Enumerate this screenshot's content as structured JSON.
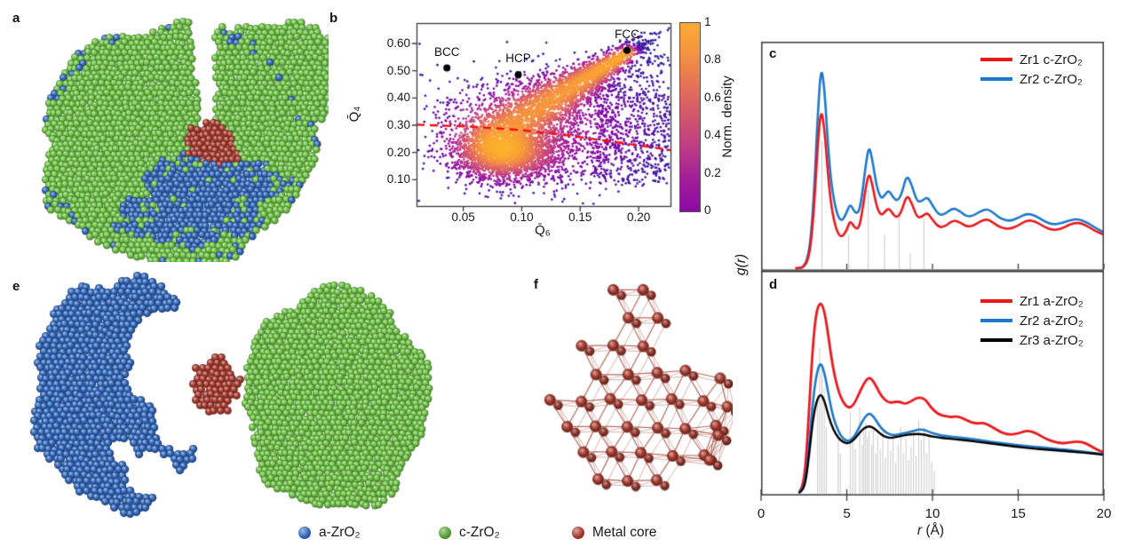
{
  "figure": {
    "panels": {
      "a": {
        "label": "a",
        "type": "particle-render",
        "description": "cut-away core-shell nanoparticle",
        "colors": {
          "shell_green": "#6cc043",
          "inner_blue": "#2e64b8",
          "core_red": "#a5382c"
        }
      },
      "b": {
        "label": "b"
      },
      "c": {
        "label": "c"
      },
      "d": {
        "label": "d"
      },
      "e": {
        "label": "e",
        "type": "particle-render",
        "description": "separated phases",
        "colors": {
          "a_zro2": "#2e64b8",
          "c_zro2": "#6cc043",
          "metal": "#a5382c"
        }
      },
      "f": {
        "label": "f",
        "type": "lattice-render",
        "description": "metal core lattice",
        "color": "#a5382c",
        "bond_color": "#9c3a2e"
      }
    },
    "bottom_legend": [
      {
        "label": "a-ZrO₂",
        "color": "#2e64b8"
      },
      {
        "label": "c-ZrO₂",
        "color": "#55a038"
      },
      {
        "label": "Metal core",
        "color": "#a5382c"
      }
    ]
  },
  "chart_data": [
    {
      "type": "scatter",
      "panel": "b",
      "xlabel": "Q̄₆",
      "ylabel": "Q̄₄",
      "xlim": [
        0.01,
        0.228
      ],
      "ylim": [
        0,
        0.675
      ],
      "xticks": [
        0.05,
        0.1,
        0.15,
        0.2
      ],
      "xtick_labels": [
        "0.05",
        "0.10",
        "0.15",
        "0.20"
      ],
      "yticks": [
        0.1,
        0.2,
        0.3,
        0.4,
        0.5,
        0.6
      ],
      "ytick_labels": [
        "0.10",
        "0.20",
        "0.30",
        "0.40",
        "0.50",
        "0.60"
      ],
      "grid": false,
      "colorbar": {
        "label": "Norm. density",
        "tick_labels": [
          "1",
          "0.8",
          "0.6",
          "0.4",
          "0.2",
          "0"
        ],
        "stops": [
          "#8b0aa5",
          "#a11d9a",
          "#bc3b85",
          "#d2556e",
          "#e57258",
          "#f39242",
          "#fcab33"
        ]
      },
      "point_colormap": [
        "#2e1e9c",
        "#4b14a5",
        "#7a07a6",
        "#9c169c",
        "#b93289",
        "#d04f74",
        "#e36b5d",
        "#f18a45",
        "#fba236",
        "#fcb42c"
      ],
      "annotations": [
        {
          "label": "BCC",
          "x": 0.036,
          "y": 0.51
        },
        {
          "label": "HCP",
          "x": 0.097,
          "y": 0.485
        },
        {
          "label": "FCC",
          "x": 0.19,
          "y": 0.575
        }
      ],
      "dashed_line": {
        "color": "#f40e0c",
        "points": [
          [
            0.01,
            0.302
          ],
          [
            0.06,
            0.294
          ],
          [
            0.1,
            0.282
          ],
          [
            0.14,
            0.262
          ],
          [
            0.18,
            0.238
          ],
          [
            0.21,
            0.22
          ],
          [
            0.228,
            0.208
          ]
        ]
      },
      "density_model": {
        "seed": 42,
        "clusters": [
          {
            "kind": "gauss",
            "n": 2400,
            "cu": 0.344,
            "cv": 0.296,
            "su": 0.096,
            "sv": 0.074,
            "w": 1.0
          },
          {
            "kind": "streak",
            "n": 2500,
            "u0": 0.312,
            "v0": 0.4,
            "u1": 0.826,
            "v1": 0.837,
            "s0": 0.085,
            "s1": 0.02,
            "jitter": 0.1,
            "w": 1.35
          },
          {
            "kind": "gauss",
            "n": 1500,
            "cu": 0.482,
            "cv": 0.415,
            "su": 0.22,
            "sv": 0.156,
            "w": 0.2
          },
          {
            "kind": "uniform",
            "n": 650,
            "u0": 0.7,
            "u1": 0.995,
            "v0": 0.12,
            "v1": 0.83,
            "w": 0.0
          }
        ]
      }
    },
    {
      "type": "line",
      "panel": "c",
      "ylabel": "g(r)",
      "xlim": [
        0,
        20
      ],
      "xticks": [
        5,
        10,
        15,
        20
      ],
      "stick_color": "#c9c9c9",
      "sticks": [
        [
          3.55,
          0.57
        ],
        [
          5.1,
          0.15
        ],
        [
          6.25,
          0.35
        ],
        [
          7.2,
          0.15
        ],
        [
          8.05,
          0.23
        ],
        [
          8.7,
          0.065
        ],
        [
          9.5,
          0.22
        ]
      ],
      "legend": [
        {
          "label": "Zr1 c-ZrO₂",
          "color": "#e8191d"
        },
        {
          "label": "Zr2 c-ZrO₂",
          "color": "#1f78c8"
        }
      ],
      "x": [
        2.0,
        2.3,
        2.5,
        2.7,
        2.9,
        3.1,
        3.3,
        3.5,
        3.7,
        3.9,
        4.1,
        4.4,
        4.7,
        5.0,
        5.2,
        5.45,
        5.7,
        5.9,
        6.1,
        6.3,
        6.5,
        6.75,
        7.0,
        7.2,
        7.45,
        7.7,
        7.95,
        8.2,
        8.5,
        8.8,
        9.1,
        9.4,
        9.7,
        10.0,
        10.4,
        10.8,
        11.2,
        11.6,
        12.0,
        12.4,
        12.8,
        13.2,
        13.6,
        14.0,
        14.5,
        15.0,
        15.5,
        16.0,
        16.5,
        17.0,
        17.5,
        18.0,
        18.5,
        19.0,
        19.5,
        20.0
      ],
      "series": [
        {
          "name": "Zr2 c-ZrO₂",
          "color": "#1f78c8",
          "width": 2.6,
          "y": [
            0,
            0,
            0.01,
            0.04,
            0.13,
            0.35,
            0.68,
            0.91,
            0.8,
            0.55,
            0.37,
            0.245,
            0.205,
            0.25,
            0.29,
            0.25,
            0.245,
            0.33,
            0.46,
            0.55,
            0.48,
            0.36,
            0.31,
            0.325,
            0.35,
            0.315,
            0.3,
            0.33,
            0.42,
            0.37,
            0.295,
            0.3,
            0.32,
            0.28,
            0.235,
            0.245,
            0.27,
            0.255,
            0.23,
            0.235,
            0.255,
            0.265,
            0.245,
            0.22,
            0.21,
            0.225,
            0.245,
            0.235,
            0.21,
            0.195,
            0.2,
            0.215,
            0.22,
            0.205,
            0.18,
            0.16
          ]
        },
        {
          "name": "Zr1 c-ZrO₂",
          "color": "#e8191d",
          "width": 2.6,
          "y": [
            0,
            0,
            0.008,
            0.03,
            0.1,
            0.28,
            0.55,
            0.72,
            0.62,
            0.42,
            0.27,
            0.165,
            0.135,
            0.17,
            0.215,
            0.18,
            0.175,
            0.25,
            0.36,
            0.43,
            0.37,
            0.27,
            0.235,
            0.25,
            0.27,
            0.24,
            0.225,
            0.255,
            0.33,
            0.29,
            0.225,
            0.23,
            0.25,
            0.215,
            0.18,
            0.19,
            0.215,
            0.205,
            0.185,
            0.19,
            0.21,
            0.22,
            0.2,
            0.18,
            0.175,
            0.19,
            0.215,
            0.21,
            0.185,
            0.17,
            0.175,
            0.195,
            0.205,
            0.19,
            0.165,
            0.15
          ]
        }
      ]
    },
    {
      "type": "line",
      "panel": "d",
      "xlabel_var": "r",
      "xlabel_unit": " (Å)",
      "xlim": [
        0,
        20
      ],
      "xticks": [
        0,
        5,
        10,
        15,
        20
      ],
      "xtick_labels": [
        "0",
        "5",
        "10",
        "15",
        "20"
      ],
      "stick_color": "#c9c9c9",
      "sticks": [
        [
          3.3,
          0.44
        ],
        [
          3.42,
          0.66
        ],
        [
          3.55,
          0.57
        ],
        [
          3.68,
          0.48
        ],
        [
          3.8,
          0.3
        ],
        [
          4.5,
          0.27
        ],
        [
          4.62,
          0.18
        ],
        [
          5.2,
          0.37
        ],
        [
          5.35,
          0.25
        ],
        [
          5.5,
          0.2
        ],
        [
          5.75,
          0.39
        ],
        [
          5.9,
          0.22
        ],
        [
          6.0,
          0.28
        ],
        [
          6.1,
          0.32
        ],
        [
          6.2,
          0.25
        ],
        [
          6.3,
          0.28
        ],
        [
          6.45,
          0.22
        ],
        [
          6.55,
          0.3
        ],
        [
          6.7,
          0.18
        ],
        [
          6.8,
          0.26
        ],
        [
          6.95,
          0.2
        ],
        [
          7.1,
          0.28
        ],
        [
          7.25,
          0.16
        ],
        [
          7.4,
          0.24
        ],
        [
          7.55,
          0.19
        ],
        [
          7.7,
          0.27
        ],
        [
          7.85,
          0.14
        ],
        [
          8.0,
          0.22
        ],
        [
          8.15,
          0.3
        ],
        [
          8.3,
          0.18
        ],
        [
          8.45,
          0.25
        ],
        [
          8.6,
          0.15
        ],
        [
          8.75,
          0.21
        ],
        [
          8.9,
          0.28
        ],
        [
          9.05,
          0.17
        ],
        [
          9.2,
          0.33
        ],
        [
          9.35,
          0.24
        ],
        [
          9.5,
          0.3
        ],
        [
          9.65,
          0.18
        ],
        [
          9.8,
          0.26
        ],
        [
          9.95,
          0.14
        ],
        [
          10.1,
          0.1
        ]
      ],
      "legend": [
        {
          "label": "Zr1 a-ZrO₂",
          "color": "#e8191d"
        },
        {
          "label": "Zr2 a-ZrO₂",
          "color": "#1f78c8"
        },
        {
          "label": "Zr3 a-ZrO₂",
          "color": "#000000"
        }
      ],
      "x": [
        2.2,
        2.4,
        2.6,
        2.8,
        3.0,
        3.2,
        3.45,
        3.7,
        3.95,
        4.2,
        4.5,
        4.8,
        5.1,
        5.4,
        5.7,
        6.0,
        6.3,
        6.6,
        6.9,
        7.2,
        7.5,
        7.8,
        8.1,
        8.4,
        8.7,
        9.0,
        9.3,
        9.6,
        9.9,
        10.3,
        10.7,
        11.1,
        11.5,
        12.0,
        12.5,
        13.0,
        13.5,
        14.0,
        14.5,
        15.0,
        15.5,
        16.0,
        16.5,
        17.0,
        17.5,
        18.0,
        18.5,
        19.0,
        19.5,
        20.0
      ],
      "series": [
        {
          "name": "Zr1 a-ZrO₂",
          "color": "#e8191d",
          "width": 2.8,
          "y": [
            0,
            0.02,
            0.12,
            0.38,
            0.65,
            0.82,
            0.874,
            0.83,
            0.7,
            0.565,
            0.465,
            0.41,
            0.385,
            0.4,
            0.45,
            0.5,
            0.53,
            0.505,
            0.455,
            0.425,
            0.41,
            0.415,
            0.415,
            0.405,
            0.415,
            0.43,
            0.435,
            0.425,
            0.39,
            0.36,
            0.35,
            0.345,
            0.35,
            0.33,
            0.315,
            0.32,
            0.3,
            0.275,
            0.265,
            0.27,
            0.285,
            0.275,
            0.25,
            0.235,
            0.225,
            0.23,
            0.235,
            0.225,
            0.2,
            0.185
          ]
        },
        {
          "name": "Zr2 a-ZrO₂",
          "color": "#1f78c8",
          "width": 2.6,
          "y": [
            0,
            0.01,
            0.06,
            0.21,
            0.4,
            0.53,
            0.6,
            0.55,
            0.44,
            0.345,
            0.28,
            0.245,
            0.235,
            0.25,
            0.295,
            0.34,
            0.365,
            0.345,
            0.305,
            0.28,
            0.265,
            0.263,
            0.268,
            0.273,
            0.278,
            0.285,
            0.29,
            0.285,
            0.275,
            0.265,
            0.26,
            0.255,
            0.253,
            0.248,
            0.243,
            0.238,
            0.232,
            0.227,
            0.222,
            0.217,
            0.213,
            0.21,
            0.206,
            0.202,
            0.199,
            0.195,
            0.19,
            0.186,
            0.181,
            0.176
          ]
        },
        {
          "name": "Zr3 a-ZrO₂",
          "color": "#000000",
          "width": 2.4,
          "y": [
            0,
            0.008,
            0.05,
            0.17,
            0.32,
            0.41,
            0.455,
            0.42,
            0.345,
            0.29,
            0.25,
            0.23,
            0.225,
            0.24,
            0.27,
            0.295,
            0.305,
            0.295,
            0.272,
            0.257,
            0.25,
            0.253,
            0.258,
            0.263,
            0.266,
            0.268,
            0.268,
            0.264,
            0.258,
            0.253,
            0.249,
            0.246,
            0.243,
            0.239,
            0.234,
            0.229,
            0.224,
            0.219,
            0.214,
            0.209,
            0.205,
            0.201,
            0.198,
            0.195,
            0.192,
            0.189,
            0.185,
            0.182,
            0.178,
            0.173
          ]
        }
      ]
    }
  ]
}
